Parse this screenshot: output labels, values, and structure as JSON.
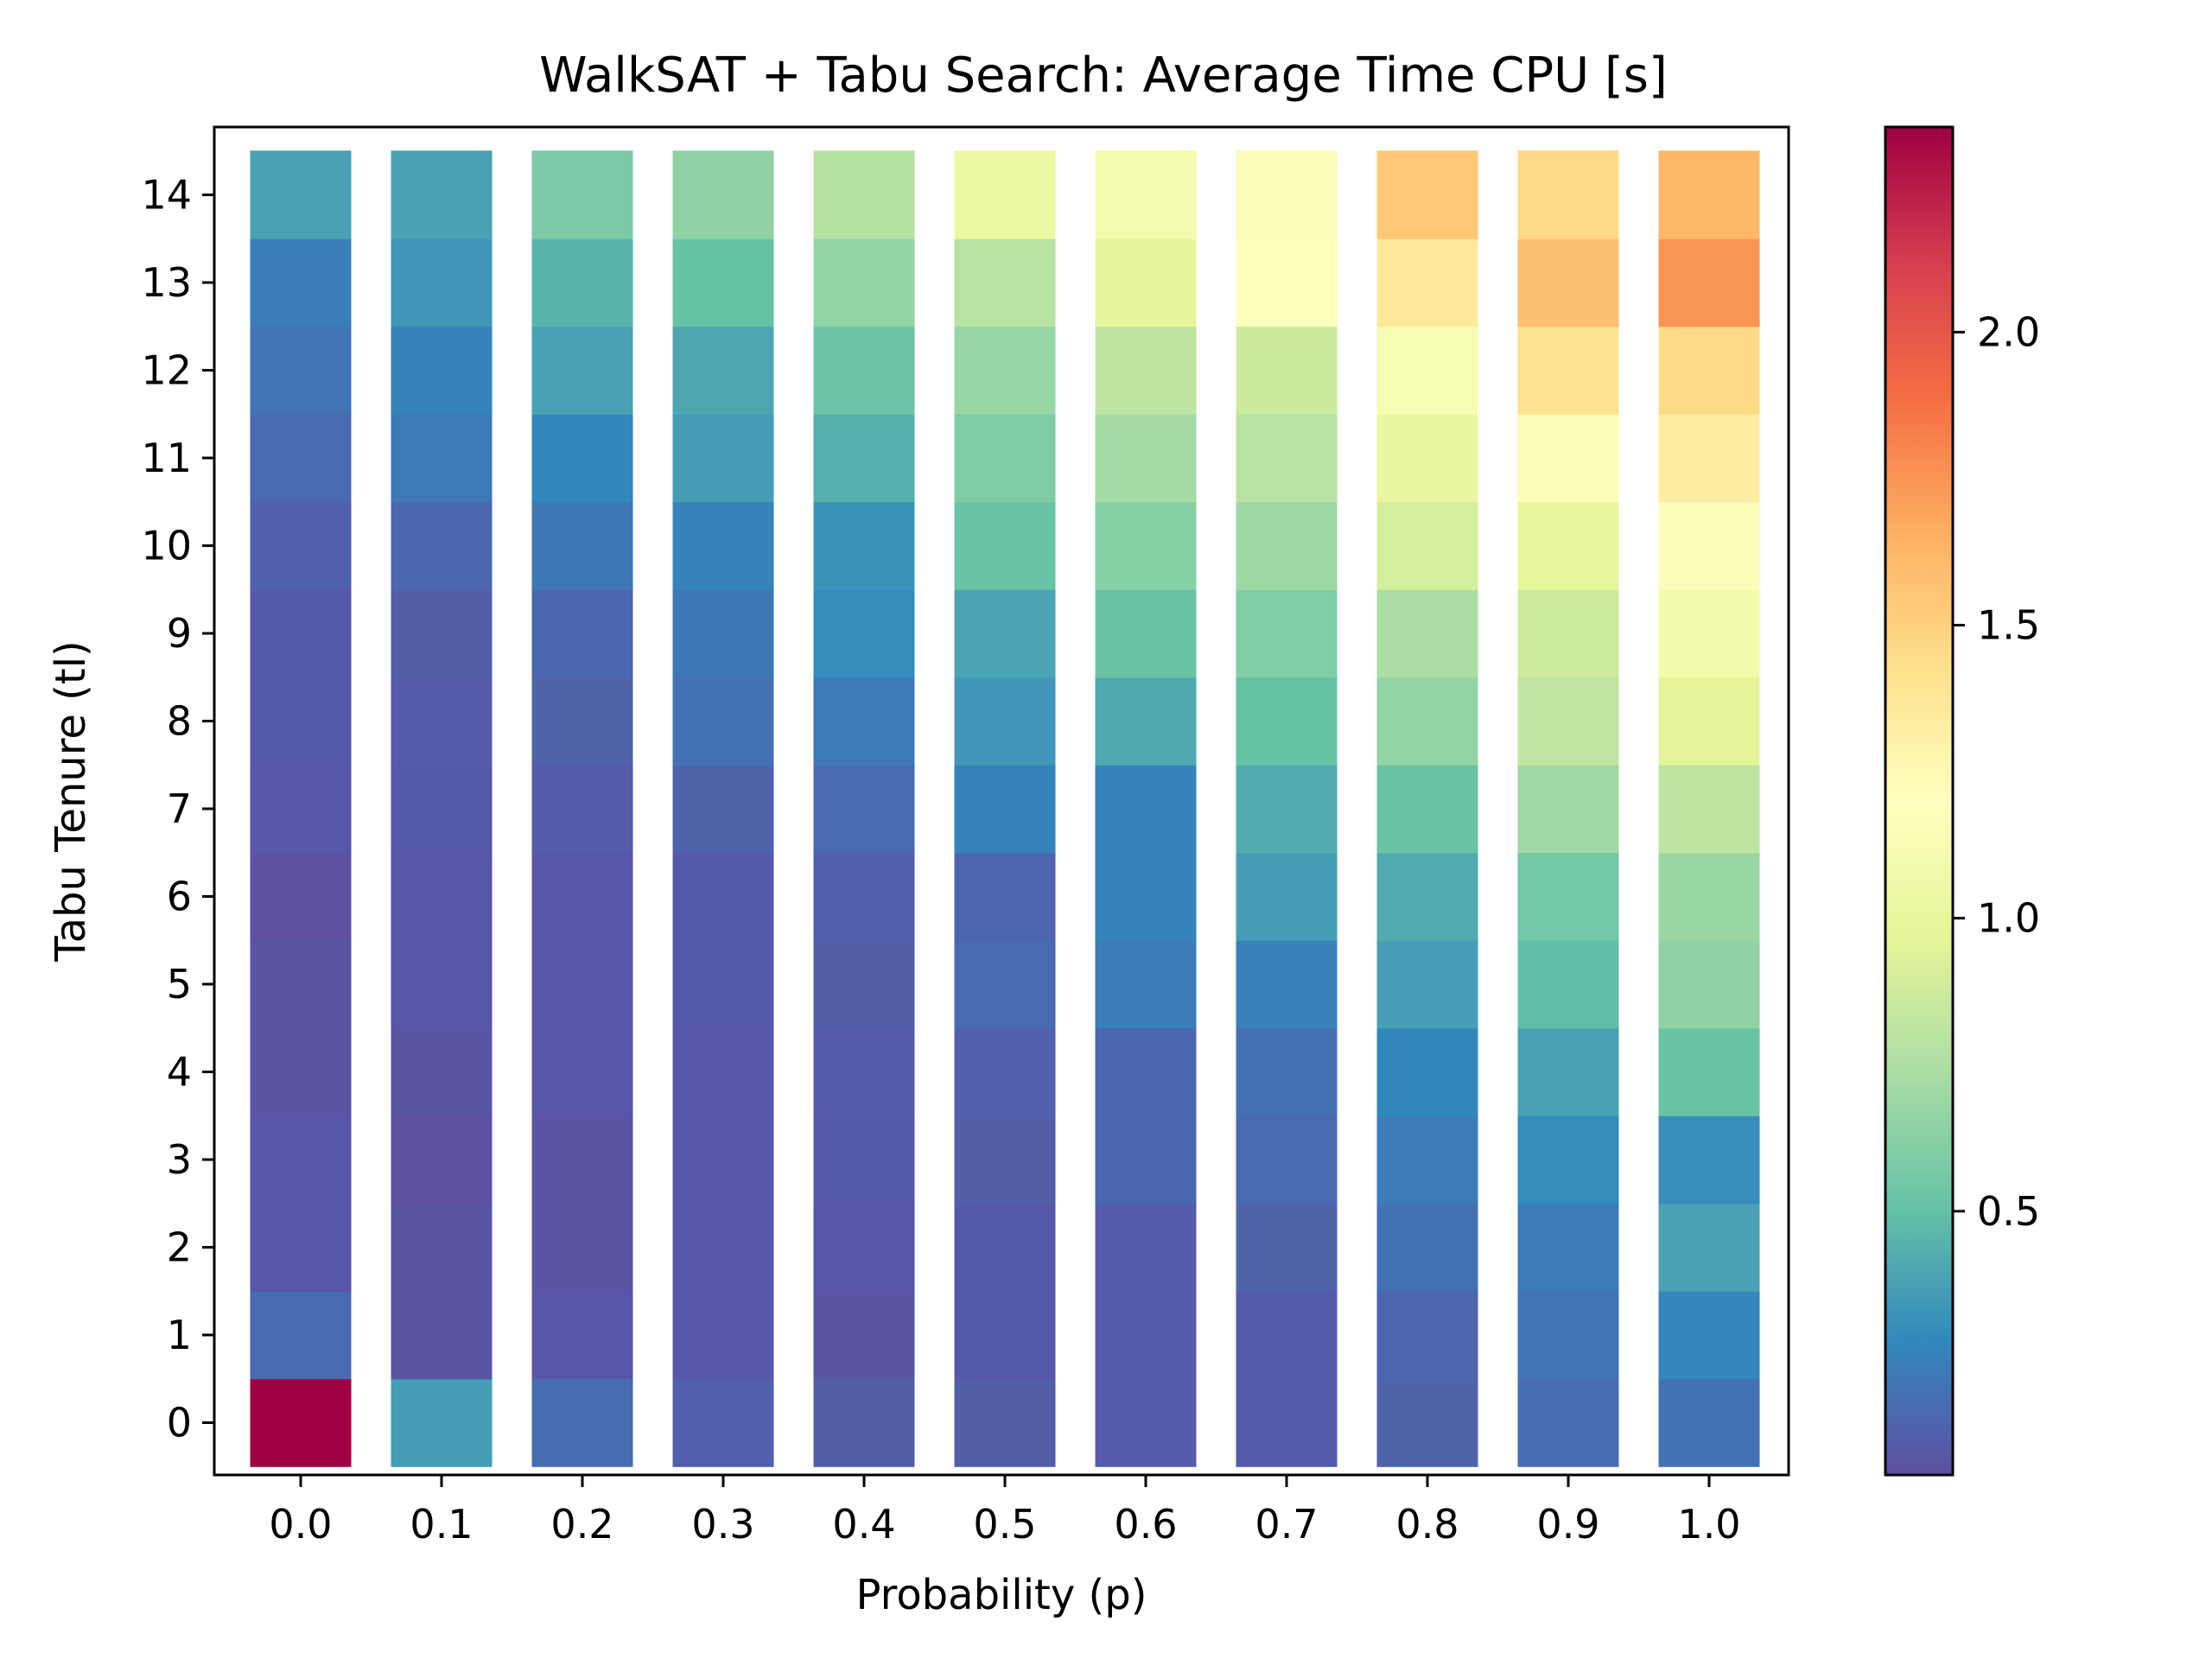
{
  "chart_data": {
    "type": "heatmap",
    "title": "WalkSAT + Tabu Search: Average Time CPU [s]",
    "xlabel": "Probability (p)",
    "ylabel": "Tabu Tenure (tl)",
    "x_categories": [
      "0.0",
      "0.1",
      "0.2",
      "0.3",
      "0.4",
      "0.5",
      "0.6",
      "0.7",
      "0.8",
      "0.9",
      "1.0"
    ],
    "y_categories": [
      "0",
      "1",
      "2",
      "3",
      "4",
      "5",
      "6",
      "7",
      "8",
      "9",
      "10",
      "11",
      "12",
      "13",
      "14"
    ],
    "values": [
      [
        2.35,
        0.36,
        0.17,
        0.12,
        0.11,
        0.11,
        0.1,
        0.1,
        0.13,
        0.17,
        0.19
      ],
      [
        0.16,
        0.07,
        0.08,
        0.08,
        0.07,
        0.09,
        0.1,
        0.1,
        0.14,
        0.2,
        0.27
      ],
      [
        0.08,
        0.07,
        0.07,
        0.08,
        0.08,
        0.09,
        0.1,
        0.13,
        0.19,
        0.23,
        0.38
      ],
      [
        0.08,
        0.06,
        0.07,
        0.08,
        0.09,
        0.11,
        0.15,
        0.16,
        0.23,
        0.29,
        0.3
      ],
      [
        0.07,
        0.07,
        0.08,
        0.08,
        0.1,
        0.12,
        0.15,
        0.18,
        0.28,
        0.38,
        0.52
      ],
      [
        0.07,
        0.08,
        0.08,
        0.09,
        0.11,
        0.16,
        0.24,
        0.25,
        0.37,
        0.49,
        0.65
      ],
      [
        0.06,
        0.08,
        0.08,
        0.09,
        0.12,
        0.14,
        0.26,
        0.36,
        0.42,
        0.55,
        0.68
      ],
      [
        0.08,
        0.09,
        0.1,
        0.13,
        0.16,
        0.26,
        0.26,
        0.42,
        0.52,
        0.7,
        0.81
      ],
      [
        0.09,
        0.1,
        0.13,
        0.19,
        0.22,
        0.34,
        0.41,
        0.51,
        0.66,
        0.82,
        0.96
      ],
      [
        0.09,
        0.11,
        0.15,
        0.21,
        0.29,
        0.39,
        0.52,
        0.6,
        0.74,
        0.87,
        1.08
      ],
      [
        0.12,
        0.15,
        0.21,
        0.26,
        0.32,
        0.52,
        0.62,
        0.69,
        0.9,
        1.0,
        1.16
      ],
      [
        0.16,
        0.22,
        0.28,
        0.36,
        0.44,
        0.59,
        0.72,
        0.79,
        1.02,
        1.16,
        1.33
      ],
      [
        0.2,
        0.26,
        0.38,
        0.4,
        0.53,
        0.67,
        0.81,
        0.86,
        1.12,
        1.41,
        1.45
      ],
      [
        0.24,
        0.34,
        0.45,
        0.51,
        0.66,
        0.79,
        0.99,
        1.19,
        1.36,
        1.58,
        1.75
      ],
      [
        0.38,
        0.38,
        0.58,
        0.65,
        0.78,
        1.03,
        1.1,
        1.16,
        1.54,
        1.46,
        1.62
      ]
    ],
    "colorbar": {
      "min": 0.05,
      "max": 2.35,
      "ticks": [
        "0.5",
        "1.0",
        "1.5",
        "2.0"
      ],
      "tick_values": [
        0.5,
        1.0,
        1.5,
        2.0
      ],
      "colormap": [
        "#5e4fa2",
        "#3288bd",
        "#66c2a5",
        "#abdda4",
        "#e6f598",
        "#ffffbf",
        "#fee08b",
        "#fdae61",
        "#f46d43",
        "#d53e4f",
        "#9e0142"
      ]
    }
  }
}
